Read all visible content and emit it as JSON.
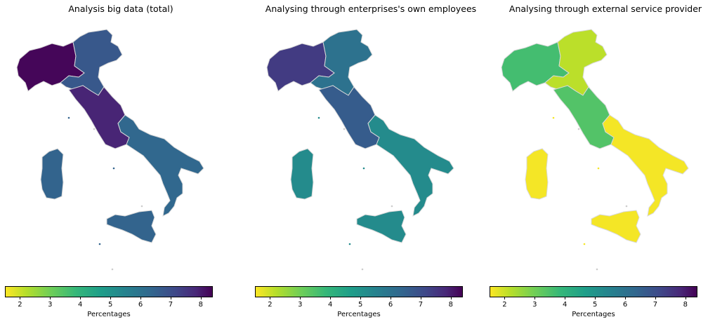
{
  "panels": [
    {
      "title": "Analysis big data (total)",
      "regions": {
        "northwest": 8.3,
        "northeast": 6.5,
        "centre": 7.7,
        "south": 6.1,
        "islands": 6.2
      }
    },
    {
      "title": "Analysing through enterprises's own employees",
      "regions": {
        "northwest": 7.2,
        "northeast": 5.8,
        "centre": 6.4,
        "south": 5.1,
        "islands": 5.1
      }
    },
    {
      "title": "Analysing through external service provider",
      "regions": {
        "northwest": 3.6,
        "northeast": 2.2,
        "centre": 3.4,
        "south": 1.6,
        "islands": 1.6
      }
    }
  ],
  "colorbar": {
    "label": "Percentages",
    "min": 1.5,
    "max": 8.4,
    "ticks": [
      "2",
      "3",
      "4",
      "5",
      "6",
      "7",
      "8"
    ],
    "colormap": "viridis_r"
  }
}
